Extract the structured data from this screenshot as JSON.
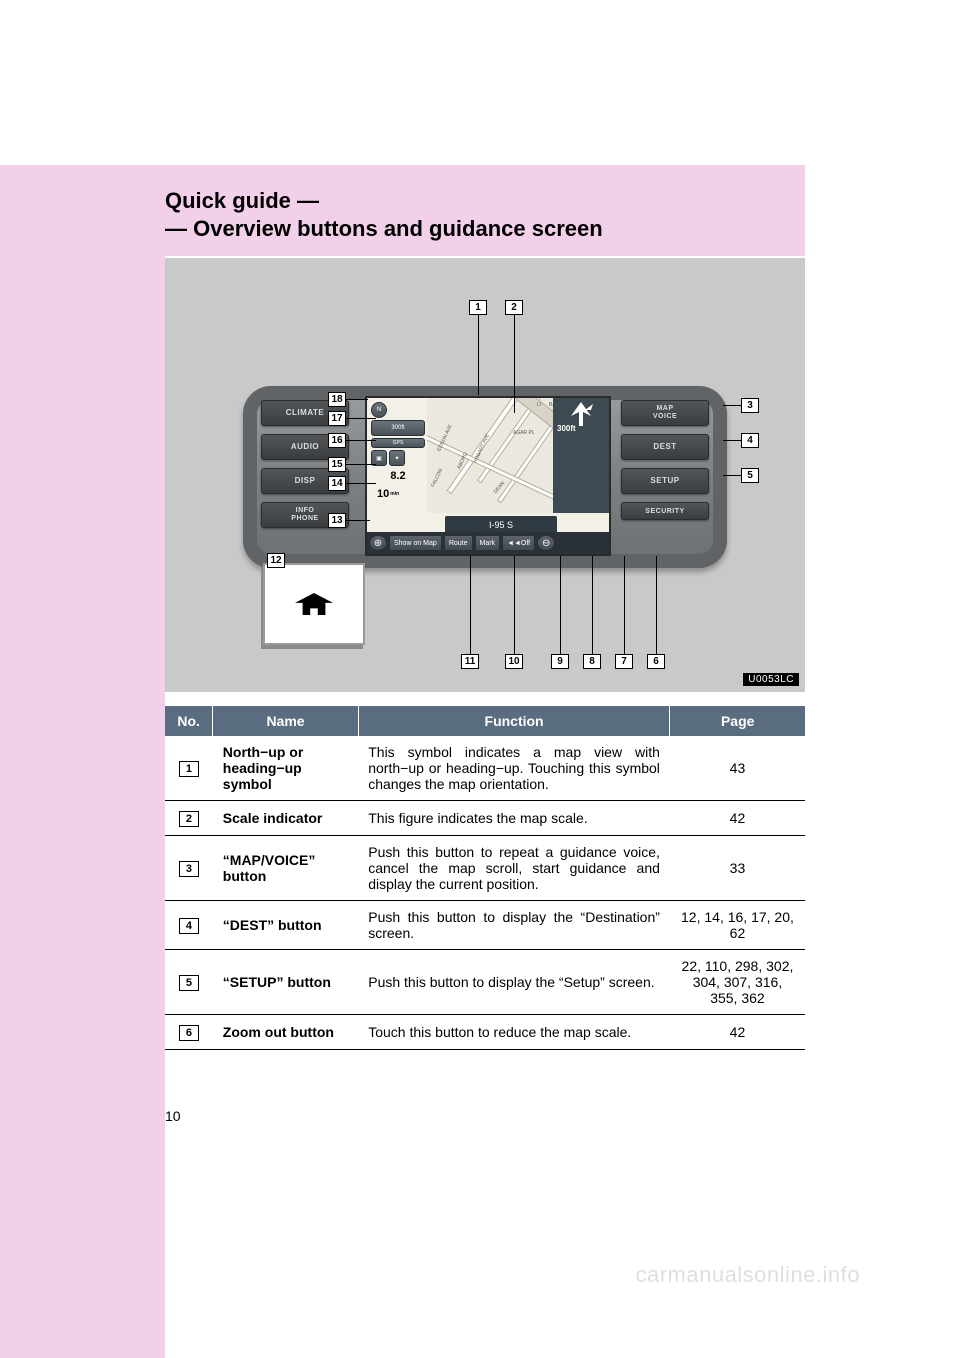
{
  "page_number": "10",
  "watermark": "carmanualsonline.info",
  "header": {
    "line1": "Quick guide —",
    "line2": "— Overview buttons and guidance screen"
  },
  "figure": {
    "image_code": "U0053LC",
    "hw_buttons_left": [
      "CLIMATE",
      "AUDIO",
      "DISP",
      "INFO\nPHONE"
    ],
    "hw_buttons_right": [
      "MAP\nVOICE",
      "DEST",
      "SETUP",
      "SECURITY"
    ],
    "screen": {
      "scale_label": "300ft",
      "gps_label": "GPS",
      "fe_value": "8.2",
      "eta_value": "10",
      "eta_unit": "min",
      "turn_distance": "300ft",
      "road_name": "I-95 S",
      "street_labels": [
        "EDSON AVE",
        "FALCON",
        "ABORD",
        "HOBART AVE",
        "DEAN",
        "AGAR PL",
        "LI",
        "BA"
      ],
      "bottom_buttons": [
        "Show on Map",
        "Route",
        "Mark",
        "◄◄Off"
      ]
    },
    "callouts_top": [
      "1",
      "2"
    ],
    "callouts_left": [
      "18",
      "17",
      "16",
      "15",
      "14",
      "13",
      "12"
    ],
    "callouts_right": [
      "3",
      "4",
      "5"
    ],
    "callouts_bottom": [
      "11",
      "10",
      "9",
      "8",
      "7",
      "6"
    ]
  },
  "table": {
    "columns": [
      "No.",
      "Name",
      "Function",
      "Page"
    ],
    "rows": [
      {
        "no": "1",
        "name": "North−up or heading−up symbol",
        "function": "This symbol indicates a map view with north−up or heading−up.  Touching this symbol changes the map orientation.",
        "page": "43"
      },
      {
        "no": "2",
        "name": "Scale indicator",
        "function": "This figure indicates the map scale.",
        "page": "42"
      },
      {
        "no": "3",
        "name": "“MAP/VOICE” button",
        "function": "Push this button to repeat a guidance voice, cancel the map scroll, start guidance and display the current position.",
        "page": "33"
      },
      {
        "no": "4",
        "name": "“DEST” button",
        "function": "Push this button to display the “Destination” screen.",
        "page": "12, 14, 16, 17, 20, 62"
      },
      {
        "no": "5",
        "name": "“SETUP” button",
        "function": "Push this button to display the “Setup” screen.",
        "page": "22, 110, 298, 302, 304, 307, 316, 355, 362"
      },
      {
        "no": "6",
        "name": "Zoom out button",
        "function": "Touch this button to reduce the map scale.",
        "page": "42"
      }
    ]
  },
  "colors": {
    "pink": "#f3d0e9",
    "figure_bg": "#c9c9c9",
    "table_header_bg": "#5a6d80"
  }
}
